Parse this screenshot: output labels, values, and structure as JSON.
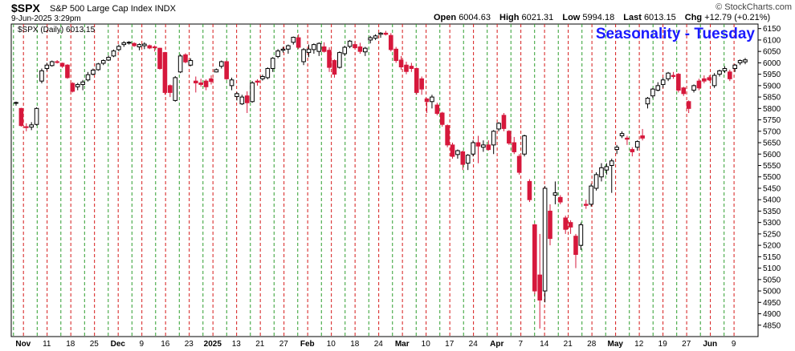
{
  "header": {
    "symbol": "$SPX",
    "description": "S&P 500 Large Cap Index  INDX",
    "datetime": "9-Jun-2025 3:29pm",
    "copyright": "© StockCharts.com",
    "open_label": "Open",
    "open": "6004.63",
    "high_label": "High",
    "high": "6021.31",
    "low_label": "Low",
    "low": "5994.18",
    "last_label": "Last",
    "last": "6013.15",
    "chg_label": "Chg",
    "chg": "+12.79 (+0.21%)"
  },
  "chart_data": {
    "type": "candlestick",
    "title": "Seasonality - Tuesday",
    "legend": "$SPX (Daily) 6013.15",
    "y_range": [
      4800,
      6170
    ],
    "y_ticks": [
      4850,
      4900,
      4950,
      5000,
      5050,
      5100,
      5150,
      5200,
      5250,
      5300,
      5350,
      5400,
      5450,
      5500,
      5550,
      5600,
      5650,
      5700,
      5750,
      5800,
      5850,
      5900,
      5950,
      6000,
      6050,
      6100,
      6150
    ],
    "x_ticks": [
      "Nov",
      "11",
      "18",
      "25",
      "Dec",
      "9",
      "16",
      "23",
      "2025",
      "13",
      "21",
      "27",
      "Feb",
      "10",
      "18",
      "24",
      "Mar",
      "10",
      "17",
      "24",
      "Apr",
      "7",
      "14",
      "21",
      "28",
      "May",
      "12",
      "19",
      "27",
      "Jun",
      "9"
    ],
    "x_tick_bold": [
      "Nov",
      "Dec",
      "2025",
      "Feb",
      "Mar",
      "Apr",
      "May",
      "Jun"
    ],
    "colors": {
      "up": "#ffffff",
      "down": "#d6183c",
      "outline": "#000000",
      "green_line": "#2e9e2e",
      "red_line": "#d61a1a",
      "title": "#1a1aff"
    },
    "green_gridlines": 31,
    "red_gridlines": 31,
    "candles": [
      {
        "o": 5823,
        "h": 5830,
        "l": 5812,
        "c": 5826
      },
      {
        "o": 5800,
        "h": 5803,
        "l": 5720,
        "c": 5725
      },
      {
        "o": 5720,
        "h": 5735,
        "l": 5700,
        "c": 5716
      },
      {
        "o": 5718,
        "h": 5740,
        "l": 5705,
        "c": 5728
      },
      {
        "o": 5730,
        "h": 5805,
        "l": 5725,
        "c": 5800
      },
      {
        "o": 5920,
        "h": 5975,
        "l": 5910,
        "c": 5965
      },
      {
        "o": 5975,
        "h": 6000,
        "l": 5965,
        "c": 5990
      },
      {
        "o": 5988,
        "h": 6010,
        "l": 5983,
        "c": 6005
      },
      {
        "o": 6005,
        "h": 6012,
        "l": 5997,
        "c": 6002
      },
      {
        "o": 5998,
        "h": 6001,
        "l": 5978,
        "c": 5985
      },
      {
        "o": 5990,
        "h": 5994,
        "l": 5930,
        "c": 5935
      },
      {
        "o": 5910,
        "h": 5915,
        "l": 5870,
        "c": 5875
      },
      {
        "o": 5895,
        "h": 5912,
        "l": 5880,
        "c": 5905
      },
      {
        "o": 5905,
        "h": 5925,
        "l": 5880,
        "c": 5916
      },
      {
        "o": 5925,
        "h": 5960,
        "l": 5918,
        "c": 5948
      },
      {
        "o": 5950,
        "h": 5975,
        "l": 5945,
        "c": 5968
      },
      {
        "o": 5970,
        "h": 6000,
        "l": 5965,
        "c": 5995
      },
      {
        "o": 5998,
        "h": 6015,
        "l": 5990,
        "c": 6010
      },
      {
        "o": 6012,
        "h": 6032,
        "l": 6008,
        "c": 6024
      },
      {
        "o": 6030,
        "h": 6058,
        "l": 6025,
        "c": 6052
      },
      {
        "o": 6058,
        "h": 6080,
        "l": 6050,
        "c": 6072
      },
      {
        "o": 6080,
        "h": 6095,
        "l": 6070,
        "c": 6088
      },
      {
        "o": 6088,
        "h": 6095,
        "l": 6080,
        "c": 6090
      },
      {
        "o": 6085,
        "h": 6090,
        "l": 6070,
        "c": 6075
      },
      {
        "o": 6070,
        "h": 6085,
        "l": 6055,
        "c": 6080
      },
      {
        "o": 6075,
        "h": 6090,
        "l": 6060,
        "c": 6082
      },
      {
        "o": 6075,
        "h": 6080,
        "l": 6060,
        "c": 6065
      },
      {
        "o": 6070,
        "h": 6076,
        "l": 6050,
        "c": 6066
      },
      {
        "o": 6064,
        "h": 6066,
        "l": 5970,
        "c": 5975
      },
      {
        "o": 6045,
        "h": 6048,
        "l": 5860,
        "c": 5870
      },
      {
        "o": 5900,
        "h": 5905,
        "l": 5850,
        "c": 5870
      },
      {
        "o": 5835,
        "h": 5942,
        "l": 5830,
        "c": 5935
      },
      {
        "o": 5960,
        "h": 6038,
        "l": 5955,
        "c": 6030
      },
      {
        "o": 6035,
        "h": 6042,
        "l": 5998,
        "c": 6004
      },
      {
        "o": 5990,
        "h": 6020,
        "l": 5985,
        "c": 6010
      },
      {
        "o": 5920,
        "h": 5940,
        "l": 5870,
        "c": 5912
      },
      {
        "o": 5912,
        "h": 5930,
        "l": 5895,
        "c": 5905
      },
      {
        "o": 5920,
        "h": 5928,
        "l": 5880,
        "c": 5895
      },
      {
        "o": 5930,
        "h": 5945,
        "l": 5905,
        "c": 5918
      },
      {
        "o": 5960,
        "h": 5975,
        "l": 5958,
        "c": 5970
      },
      {
        "o": 5985,
        "h": 6010,
        "l": 5975,
        "c": 6005
      },
      {
        "o": 6005,
        "h": 6010,
        "l": 5925,
        "c": 5930
      },
      {
        "o": 5900,
        "h": 5935,
        "l": 5880,
        "c": 5925
      },
      {
        "o": 5852,
        "h": 5872,
        "l": 5835,
        "c": 5865
      },
      {
        "o": 5820,
        "h": 5860,
        "l": 5815,
        "c": 5850
      },
      {
        "o": 5855,
        "h": 5875,
        "l": 5780,
        "c": 5825
      },
      {
        "o": 5830,
        "h": 5920,
        "l": 5825,
        "c": 5912
      },
      {
        "o": 5920,
        "h": 5928,
        "l": 5900,
        "c": 5915
      },
      {
        "o": 5930,
        "h": 5948,
        "l": 5922,
        "c": 5940
      },
      {
        "o": 5935,
        "h": 5980,
        "l": 5928,
        "c": 5975
      },
      {
        "o": 5975,
        "h": 6025,
        "l": 5960,
        "c": 6020
      },
      {
        "o": 6028,
        "h": 6060,
        "l": 6020,
        "c": 6052
      },
      {
        "o": 6055,
        "h": 6070,
        "l": 6045,
        "c": 6060
      },
      {
        "o": 6060,
        "h": 6080,
        "l": 6040,
        "c": 6075
      },
      {
        "o": 6090,
        "h": 6115,
        "l": 6080,
        "c": 6112
      },
      {
        "o": 6110,
        "h": 6125,
        "l": 6060,
        "c": 6068
      },
      {
        "o": 6005,
        "h": 6065,
        "l": 5990,
        "c": 6058
      },
      {
        "o": 6045,
        "h": 6080,
        "l": 6025,
        "c": 6060
      },
      {
        "o": 6058,
        "h": 6085,
        "l": 6040,
        "c": 6080
      },
      {
        "o": 6050,
        "h": 6090,
        "l": 6030,
        "c": 6085
      },
      {
        "o": 6070,
        "h": 6090,
        "l": 6045,
        "c": 6050
      },
      {
        "o": 6055,
        "h": 6068,
        "l": 5960,
        "c": 5980
      },
      {
        "o": 6010,
        "h": 6015,
        "l": 5935,
        "c": 5950
      },
      {
        "o": 5980,
        "h": 6050,
        "l": 5975,
        "c": 6045
      },
      {
        "o": 6040,
        "h": 6075,
        "l": 6030,
        "c": 6068
      },
      {
        "o": 6072,
        "h": 6100,
        "l": 6064,
        "c": 6095
      },
      {
        "o": 6080,
        "h": 6092,
        "l": 6060,
        "c": 6066
      },
      {
        "o": 6070,
        "h": 6088,
        "l": 6040,
        "c": 6050
      },
      {
        "o": 6048,
        "h": 6070,
        "l": 6030,
        "c": 6064
      },
      {
        "o": 6100,
        "h": 6118,
        "l": 6085,
        "c": 6110
      },
      {
        "o": 6108,
        "h": 6125,
        "l": 6100,
        "c": 6118
      },
      {
        "o": 6125,
        "h": 6135,
        "l": 6110,
        "c": 6130
      },
      {
        "o": 6130,
        "h": 6140,
        "l": 6120,
        "c": 6125
      },
      {
        "o": 6120,
        "h": 6130,
        "l": 6050,
        "c": 6058
      },
      {
        "o": 6060,
        "h": 6070,
        "l": 6000,
        "c": 6010
      },
      {
        "o": 6012,
        "h": 6030,
        "l": 5970,
        "c": 5982
      },
      {
        "o": 5990,
        "h": 6005,
        "l": 5950,
        "c": 5962
      },
      {
        "o": 5985,
        "h": 6000,
        "l": 5960,
        "c": 5975
      },
      {
        "o": 5975,
        "h": 5980,
        "l": 5860,
        "c": 5870
      },
      {
        "o": 5930,
        "h": 5940,
        "l": 5860,
        "c": 5885
      },
      {
        "o": 5842,
        "h": 5845,
        "l": 5780,
        "c": 5830
      },
      {
        "o": 5830,
        "h": 5860,
        "l": 5800,
        "c": 5850
      },
      {
        "o": 5815,
        "h": 5825,
        "l": 5770,
        "c": 5778
      },
      {
        "o": 5780,
        "h": 5785,
        "l": 5720,
        "c": 5730
      },
      {
        "o": 5725,
        "h": 5730,
        "l": 5630,
        "c": 5640
      },
      {
        "o": 5640,
        "h": 5650,
        "l": 5580,
        "c": 5590
      },
      {
        "o": 5598,
        "h": 5620,
        "l": 5580,
        "c": 5615
      },
      {
        "o": 5610,
        "h": 5615,
        "l": 5530,
        "c": 5555
      },
      {
        "o": 5560,
        "h": 5600,
        "l": 5530,
        "c": 5595
      },
      {
        "o": 5600,
        "h": 5660,
        "l": 5590,
        "c": 5650
      },
      {
        "o": 5650,
        "h": 5680,
        "l": 5560,
        "c": 5635
      },
      {
        "o": 5630,
        "h": 5660,
        "l": 5610,
        "c": 5640
      },
      {
        "o": 5640,
        "h": 5660,
        "l": 5615,
        "c": 5620
      },
      {
        "o": 5640,
        "h": 5705,
        "l": 5600,
        "c": 5700
      },
      {
        "o": 5710,
        "h": 5740,
        "l": 5700,
        "c": 5735
      },
      {
        "o": 5770,
        "h": 5780,
        "l": 5700,
        "c": 5712
      },
      {
        "o": 5700,
        "h": 5705,
        "l": 5640,
        "c": 5648
      },
      {
        "o": 5650,
        "h": 5675,
        "l": 5600,
        "c": 5610
      },
      {
        "o": 5590,
        "h": 5600,
        "l": 5510,
        "c": 5520
      },
      {
        "o": 5600,
        "h": 5685,
        "l": 5590,
        "c": 5680
      },
      {
        "o": 5480,
        "h": 5490,
        "l": 5390,
        "c": 5400
      },
      {
        "o": 5290,
        "h": 5295,
        "l": 4985,
        "c": 5000
      },
      {
        "o": 5070,
        "h": 5250,
        "l": 4835,
        "c": 4960
      },
      {
        "o": 5000,
        "h": 5460,
        "l": 4950,
        "c": 5450
      },
      {
        "o": 5350,
        "h": 5380,
        "l": 5200,
        "c": 5230
      },
      {
        "o": 5420,
        "h": 5480,
        "l": 5380,
        "c": 5430
      },
      {
        "o": 5410,
        "h": 5420,
        "l": 5380,
        "c": 5390
      },
      {
        "o": 5320,
        "h": 5330,
        "l": 5250,
        "c": 5270
      },
      {
        "o": 5300,
        "h": 5310,
        "l": 5250,
        "c": 5280
      },
      {
        "o": 5240,
        "h": 5250,
        "l": 5100,
        "c": 5160
      },
      {
        "o": 5200,
        "h": 5300,
        "l": 5180,
        "c": 5290
      },
      {
        "o": 5380,
        "h": 5400,
        "l": 5360,
        "c": 5375
      },
      {
        "o": 5380,
        "h": 5470,
        "l": 5370,
        "c": 5460
      },
      {
        "o": 5450,
        "h": 5520,
        "l": 5440,
        "c": 5510
      },
      {
        "o": 5500,
        "h": 5560,
        "l": 5480,
        "c": 5540
      },
      {
        "o": 5530,
        "h": 5560,
        "l": 5510,
        "c": 5545
      },
      {
        "o": 5550,
        "h": 5580,
        "l": 5430,
        "c": 5570
      },
      {
        "o": 5620,
        "h": 5640,
        "l": 5600,
        "c": 5630
      },
      {
        "o": 5680,
        "h": 5700,
        "l": 5670,
        "c": 5690
      },
      {
        "o": 5670,
        "h": 5680,
        "l": 5640,
        "c": 5665
      },
      {
        "o": 5620,
        "h": 5630,
        "l": 5590,
        "c": 5610
      },
      {
        "o": 5630,
        "h": 5660,
        "l": 5615,
        "c": 5655
      },
      {
        "o": 5680,
        "h": 5710,
        "l": 5660,
        "c": 5670
      },
      {
        "o": 5820,
        "h": 5850,
        "l": 5800,
        "c": 5845
      },
      {
        "o": 5855,
        "h": 5890,
        "l": 5845,
        "c": 5885
      },
      {
        "o": 5880,
        "h": 5915,
        "l": 5875,
        "c": 5900
      },
      {
        "o": 5905,
        "h": 5935,
        "l": 5890,
        "c": 5925
      },
      {
        "o": 5930,
        "h": 5960,
        "l": 5920,
        "c": 5955
      },
      {
        "o": 5945,
        "h": 5960,
        "l": 5930,
        "c": 5940
      },
      {
        "o": 5950,
        "h": 5955,
        "l": 5870,
        "c": 5880
      },
      {
        "o": 5890,
        "h": 5895,
        "l": 5855,
        "c": 5865
      },
      {
        "o": 5830,
        "h": 5835,
        "l": 5780,
        "c": 5800
      },
      {
        "o": 5880,
        "h": 5905,
        "l": 5870,
        "c": 5900
      },
      {
        "o": 5920,
        "h": 5930,
        "l": 5880,
        "c": 5890
      },
      {
        "o": 5930,
        "h": 5945,
        "l": 5910,
        "c": 5920
      },
      {
        "o": 5935,
        "h": 5945,
        "l": 5920,
        "c": 5925
      },
      {
        "o": 5900,
        "h": 5955,
        "l": 5890,
        "c": 5945
      },
      {
        "o": 5950,
        "h": 5970,
        "l": 5940,
        "c": 5965
      },
      {
        "o": 5965,
        "h": 5985,
        "l": 5955,
        "c": 5975
      },
      {
        "o": 5960,
        "h": 5970,
        "l": 5920,
        "c": 5930
      },
      {
        "o": 5975,
        "h": 5995,
        "l": 5960,
        "c": 5990
      },
      {
        "o": 6000,
        "h": 6015,
        "l": 5990,
        "c": 6010
      },
      {
        "o": 6004,
        "h": 6021,
        "l": 5994,
        "c": 6013
      }
    ]
  }
}
